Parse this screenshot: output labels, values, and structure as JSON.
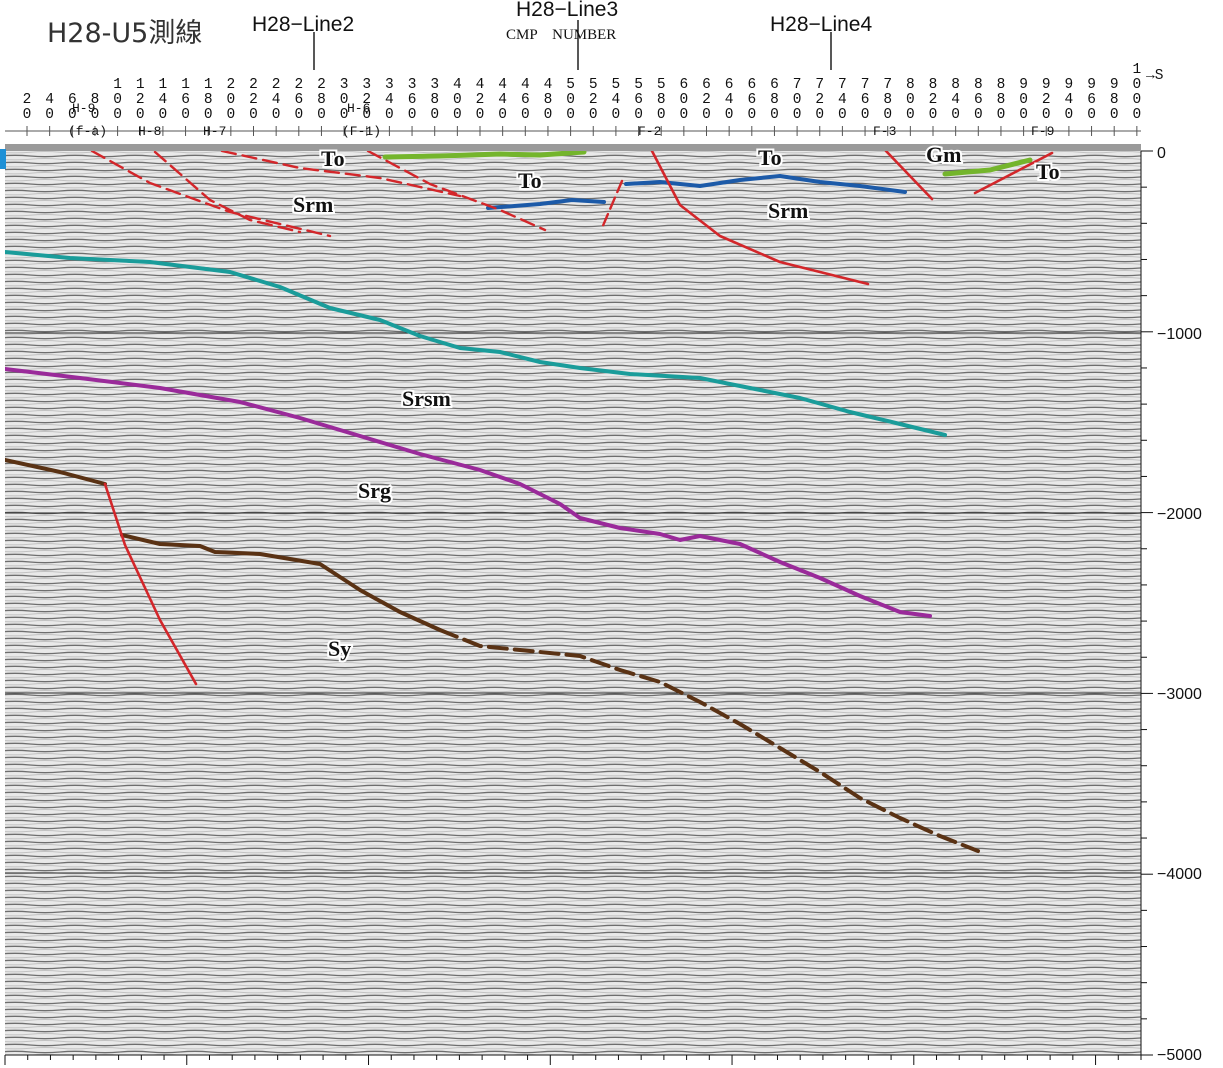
{
  "title": "H28-U5測線",
  "cross_lines": [
    {
      "label": "H28−Line2"
    },
    {
      "label": "H28−Line3"
    },
    {
      "label": "H28−Line4"
    }
  ],
  "axis_label": "CMP　NUMBER",
  "direction_label": "→S",
  "cmp_numbers": [
    "20",
    "40",
    "60",
    "80",
    "100",
    "120",
    "140",
    "160",
    "180",
    "200",
    "220",
    "240",
    "260",
    "280",
    "300",
    "320",
    "340",
    "360",
    "380",
    "400",
    "420",
    "440",
    "460",
    "480",
    "500",
    "520",
    "540",
    "560",
    "580",
    "600",
    "620",
    "640",
    "660",
    "680",
    "700",
    "720",
    "740",
    "760",
    "780",
    "800",
    "820",
    "840",
    "860",
    "880",
    "900",
    "920",
    "940",
    "960",
    "980",
    "1000"
  ],
  "fault_marks": [
    "H-9",
    "(f-a)",
    "H-8",
    "H-7",
    "H-6",
    "(F-1)",
    "F-2",
    "F-3",
    "F-9"
  ],
  "depth_ticks": [
    "0",
    "−1000",
    "−2000",
    "−3000",
    "−4000",
    "−5000"
  ],
  "units": [
    "To",
    "To",
    "To",
    "To",
    "Gm",
    "Srm",
    "Srm",
    "Srsm",
    "Srg",
    "Sy"
  ],
  "colors": {
    "fault": "#d3262a",
    "green_horizon": "#74b52c",
    "blue_horizon": "#1c5aa8",
    "teal_horizon": "#1a9c9a",
    "purple_horizon": "#9a2a9a",
    "brown_horizon": "#5a3214"
  }
}
